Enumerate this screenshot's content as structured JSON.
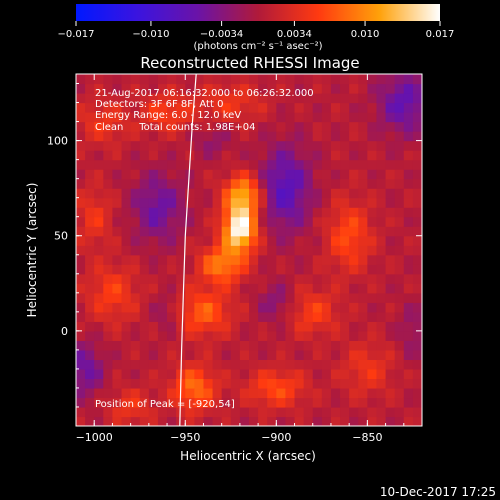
{
  "chart_data": {
    "type": "heatmap",
    "title": "Reconstructed RHESSI Image",
    "xlabel": "Heliocentric X (arcsec)",
    "ylabel": "Heliocentric Y (arcsec)",
    "xlim": [
      -1010,
      -820
    ],
    "ylim": [
      -50,
      135
    ],
    "x_ticks": [
      -1000,
      -950,
      -900,
      -850
    ],
    "x_tick_labels": [
      "−1000",
      "−950",
      "−900",
      "−850"
    ],
    "y_ticks": [
      0,
      50,
      100
    ],
    "y_tick_labels": [
      "0",
      "50",
      "100"
    ],
    "colorbar": {
      "min": -0.017,
      "max": 0.017,
      "ticks": [
        -0.017,
        -0.01,
        -0.0034,
        0.0034,
        0.01,
        0.017
      ],
      "tick_labels": [
        "−0.017",
        "−0.010",
        "−0.0034",
        "0.0034",
        "0.010",
        "0.017"
      ],
      "units": "(photons cm⁻² s⁻¹ asec⁻²)",
      "colors": [
        "#0018ff",
        "#3a14e0",
        "#6a13a8",
        "#b01a3a",
        "#ff3a10",
        "#ffa10a",
        "#ffffff"
      ]
    },
    "annotations": [
      "21-Aug-2017 06:16:32.000 to 06:26:32.000",
      "Detectors: 3F 6F 8F, Att 0",
      "Energy Range: 6.0 - 12.0 keV",
      "Clean     Total counts: 1.98E+04"
    ],
    "peak": {
      "label": "Position of Peak = [-920,54]",
      "x": -920,
      "y": 54
    },
    "blobs": [
      {
        "x": -920,
        "y": 54,
        "v": 0.017,
        "rx": 9,
        "ry": 12
      },
      {
        "x": -918,
        "y": 72,
        "v": 0.011,
        "rx": 10,
        "ry": 10
      },
      {
        "x": -930,
        "y": 35,
        "v": 0.009,
        "rx": 12,
        "ry": 10
      },
      {
        "x": -940,
        "y": 10,
        "v": 0.007,
        "rx": 15,
        "ry": 12
      },
      {
        "x": -945,
        "y": -30,
        "v": 0.008,
        "rx": 12,
        "ry": 12
      },
      {
        "x": -990,
        "y": 20,
        "v": 0.005,
        "rx": 14,
        "ry": 15
      },
      {
        "x": -995,
        "y": 110,
        "v": 0.004,
        "rx": 14,
        "ry": 12
      },
      {
        "x": -960,
        "y": 115,
        "v": 0.005,
        "rx": 14,
        "ry": 10
      },
      {
        "x": -925,
        "y": 120,
        "v": 0.004,
        "rx": 18,
        "ry": 10
      },
      {
        "x": -860,
        "y": 50,
        "v": 0.006,
        "rx": 12,
        "ry": 18
      },
      {
        "x": -880,
        "y": 10,
        "v": 0.005,
        "rx": 14,
        "ry": 12
      },
      {
        "x": -900,
        "y": -30,
        "v": 0.006,
        "rx": 16,
        "ry": 10
      },
      {
        "x": -850,
        "y": -20,
        "v": 0.004,
        "rx": 14,
        "ry": 14
      },
      {
        "x": -1000,
        "y": 60,
        "v": 0.004,
        "rx": 10,
        "ry": 16
      },
      {
        "x": -980,
        "y": -40,
        "v": 0.004,
        "rx": 12,
        "ry": 10
      },
      {
        "x": -965,
        "y": 65,
        "v": -0.006,
        "rx": 14,
        "ry": 18
      },
      {
        "x": -895,
        "y": 75,
        "v": -0.008,
        "rx": 14,
        "ry": 22
      },
      {
        "x": -830,
        "y": 120,
        "v": -0.007,
        "rx": 14,
        "ry": 16
      },
      {
        "x": -1005,
        "y": -20,
        "v": -0.006,
        "rx": 10,
        "ry": 14
      },
      {
        "x": -935,
        "y": 100,
        "v": -0.003,
        "rx": 10,
        "ry": 8
      },
      {
        "x": -900,
        "y": 15,
        "v": -0.004,
        "rx": 10,
        "ry": 10
      },
      {
        "x": -825,
        "y": 0,
        "v": -0.003,
        "rx": 8,
        "ry": 14
      },
      {
        "x": -960,
        "y": 10,
        "v": -0.003,
        "rx": 8,
        "ry": 10
      }
    ],
    "limb": [
      [
        -944,
        135
      ],
      [
        -946,
        110
      ],
      [
        -948,
        80
      ],
      [
        -950,
        50
      ],
      [
        -951,
        20
      ],
      [
        -952,
        -10
      ],
      [
        -953,
        -50
      ]
    ]
  },
  "footer": {
    "timestamp": "10-Dec-2017 17:25"
  }
}
